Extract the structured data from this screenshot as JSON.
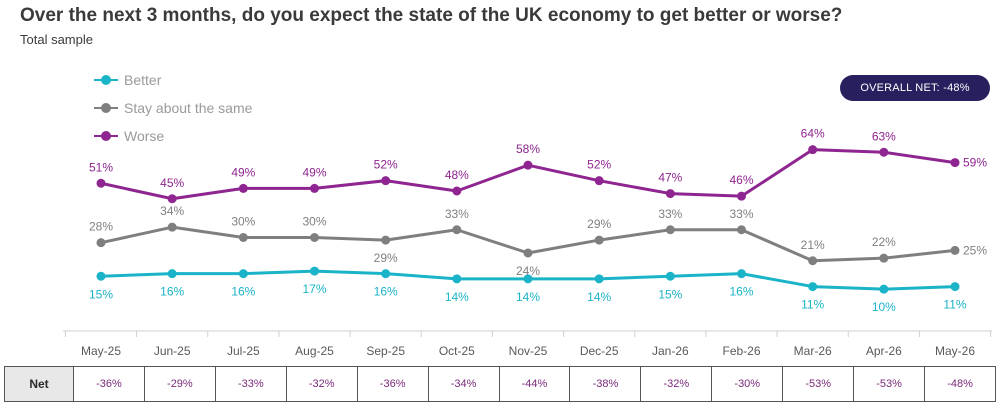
{
  "title": "Over the next 3 months, do you expect the state of the UK economy to get better or worse?",
  "subtitle": "Total sample",
  "overall_net_badge": "OVERALL NET: -48%",
  "badge_color": "#28205e",
  "net_row": {
    "label": "Net",
    "values": [
      "-36%",
      "-29%",
      "-33%",
      "-32%",
      "-36%",
      "-34%",
      "-44%",
      "-38%",
      "-32%",
      "-30%",
      "-53%",
      "-53%",
      "-48%"
    ]
  },
  "chart_data": {
    "type": "line",
    "title": "Over the next 3 months, do you expect the state of the UK economy to get better or worse?",
    "subtitle": "Total sample",
    "categories": [
      "May-25",
      "Jun-25",
      "Jul-25",
      "Aug-25",
      "Sep-25",
      "Oct-25",
      "Nov-25",
      "Dec-25",
      "Jan-26",
      "Feb-26",
      "Mar-26",
      "Apr-26",
      "May-26"
    ],
    "ylim": [
      0,
      75
    ],
    "grid": false,
    "legend_position": "top-left",
    "value_suffix": "%",
    "series": [
      {
        "name": "Better",
        "color": "#1ab3c8",
        "label_position": "below",
        "values": [
          15,
          16,
          16,
          17,
          16,
          14,
          14,
          14,
          15,
          16,
          11,
          10,
          11
        ]
      },
      {
        "name": "Stay about the same",
        "color": "#7f7f7f",
        "label_position": "above",
        "label_below_indices": [
          4,
          6
        ],
        "values": [
          28,
          34,
          30,
          30,
          29,
          33,
          24,
          29,
          33,
          33,
          21,
          22,
          25
        ]
      },
      {
        "name": "Worse",
        "color": "#8e2590",
        "label_position": "above",
        "values": [
          51,
          45,
          49,
          49,
          52,
          48,
          58,
          52,
          47,
          46,
          64,
          63,
          59
        ]
      }
    ]
  }
}
